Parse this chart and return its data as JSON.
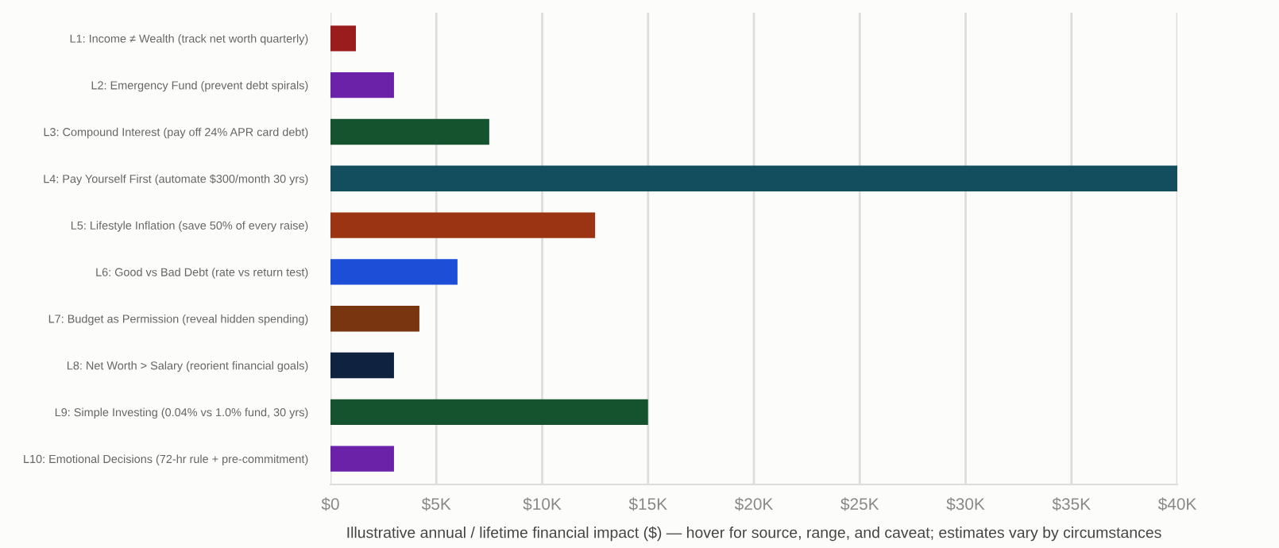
{
  "chart_data": {
    "type": "bar",
    "orientation": "horizontal",
    "xlabel": "Illustrative annual / lifetime financial impact ($) — hover for source, range, and caveat; estimates vary by circumstances",
    "categories": [
      "L1: Income ≠ Wealth (track net worth quarterly)",
      "L2: Emergency Fund (prevent debt spirals)",
      "L3: Compound Interest (pay off 24% APR card debt)",
      "L4: Pay Yourself First (automate $300/month 30 yrs)",
      "L5: Lifestyle Inflation (save 50% of every raise)",
      "L6: Good vs Bad Debt (rate vs return test)",
      "L7: Budget as Permission (reveal hidden spending)",
      "L8: Net Worth > Salary (reorient financial goals)",
      "L9: Simple Investing (0.04% vs 1.0% fund, 30 yrs)",
      "L10: Emotional Decisions (72-hr rule + pre-commitment)"
    ],
    "values": [
      1200,
      3000,
      7500,
      40000,
      12500,
      6000,
      4200,
      3000,
      15000,
      3000
    ],
    "colors": [
      "#9b1c1c",
      "#6b21a8",
      "#14532d",
      "#134e5e",
      "#9a3412",
      "#1d4ed8",
      "#78350f",
      "#0f2341",
      "#14532d",
      "#6b21a8"
    ],
    "xlim": [
      0,
      40000
    ],
    "xticks": [
      {
        "value": 0,
        "label": "$0"
      },
      {
        "value": 5000,
        "label": "$5K"
      },
      {
        "value": 10000,
        "label": "$10K"
      },
      {
        "value": 15000,
        "label": "$15K"
      },
      {
        "value": 20000,
        "label": "$20K"
      },
      {
        "value": 25000,
        "label": "$25K"
      },
      {
        "value": 30000,
        "label": "$30K"
      },
      {
        "value": 35000,
        "label": "$35K"
      },
      {
        "value": 40000,
        "label": "$40K"
      }
    ],
    "grid": "x"
  }
}
